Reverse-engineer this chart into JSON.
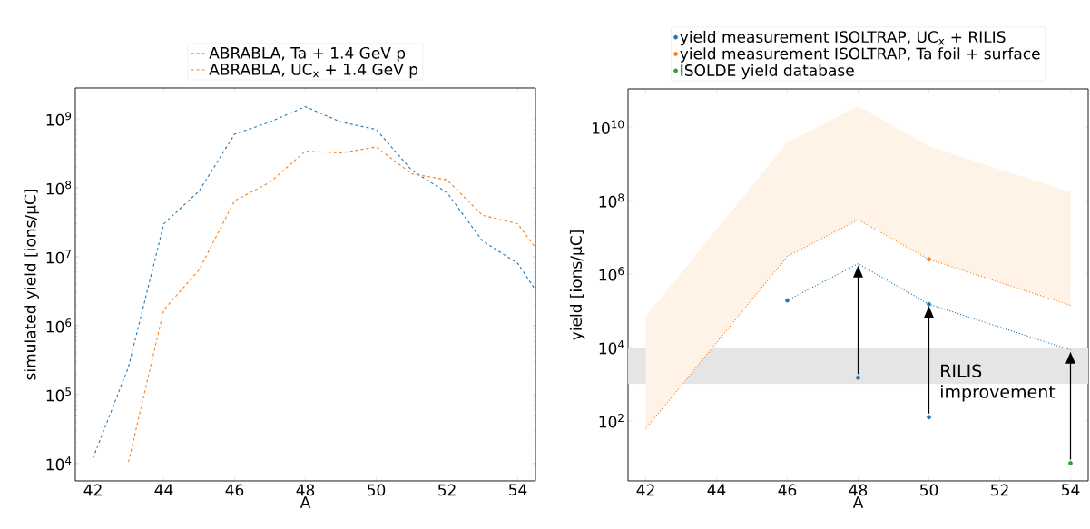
{
  "chart_data": [
    {
      "type": "line",
      "xlabel": "A",
      "ylabel": "simulated yield [ions/μC]",
      "log": "y",
      "legend": "top",
      "line_style": "dashed",
      "marker": "none",
      "xlim": [
        41.5,
        54.5
      ],
      "ylim": [
        5600,
        2800000000
      ],
      "xticks": [
        42,
        44,
        46,
        48,
        50,
        52,
        54
      ],
      "yticks": [
        {
          "value": 10000,
          "label": "10$^{4}$"
        },
        {
          "value": 100000,
          "label": "10$^{5}$"
        },
        {
          "value": 1000000,
          "label": "10$^{6}$"
        },
        {
          "value": 10000000,
          "label": "10$^{7}$"
        },
        {
          "value": 100000000,
          "label": "10$^{8}$"
        },
        {
          "value": 1000000000,
          "label": "10$^{9}$"
        }
      ],
      "series": [
        {
          "name": "ABRABLA, Ta + 1.4 GeV p",
          "color": "#1f77b4",
          "x": [
            42,
            43,
            44,
            45,
            46,
            47,
            48,
            49,
            50,
            51,
            52,
            53,
            54,
            54.5
          ],
          "values": [
            12000,
            250000,
            30000000,
            90000000,
            600000000,
            900000000,
            1500000000,
            900000000,
            700000000,
            180000000,
            85000000,
            17000000,
            8000000,
            3300000
          ]
        },
        {
          "name": "ABRABLA, UC$_{x}$ + 1.4 GeV p",
          "color": "#ff7f0e",
          "x": [
            43,
            44,
            45,
            46,
            47,
            48,
            49,
            50,
            51,
            52,
            53,
            54,
            54.5
          ],
          "values": [
            10500,
            1700000,
            6500000,
            65000000,
            120000000,
            340000000,
            320000000,
            390000000,
            160000000,
            130000000,
            40000000,
            30000000,
            13500000
          ]
        }
      ]
    },
    {
      "type": "line",
      "xlabel": "A",
      "ylabel": "yield [ions/μC]",
      "log": "y",
      "legend": "top",
      "xlim": [
        41.5,
        54.5
      ],
      "ylim": [
        2.3,
        110000000000
      ],
      "xticks": [
        42,
        44,
        46,
        48,
        50,
        52,
        54
      ],
      "yticks": [
        {
          "value": 100,
          "label": "10$^{2}$"
        },
        {
          "value": 10000,
          "label": "10$^{4}$"
        },
        {
          "value": 1000000,
          "label": "10$^{6}$"
        },
        {
          "value": 100000000,
          "label": "10$^{8}$"
        },
        {
          "value": 10000000000,
          "label": "10$^{10}$"
        }
      ],
      "bands": [
        {
          "axis": "y",
          "from": 1000,
          "to": 10000,
          "color": "#e5e5e5"
        }
      ],
      "annotations": [
        "RILIS improvement"
      ],
      "series": [
        {
          "type": "line",
          "color": "#1f77b4",
          "line_style": "dotted",
          "marker": "none",
          "x": [
            46,
            48,
            50,
            54
          ],
          "values": [
            190000,
            1900000,
            150000,
            8500
          ]
        },
        {
          "type": "line",
          "color": "#ff7f0e",
          "line_style": "dotted",
          "marker": "none",
          "x": [
            42,
            46,
            48,
            50,
            54
          ],
          "values": [
            60,
            3000000,
            30000000,
            2500000,
            140000
          ],
          "lower": [
            60,
            3000000,
            30000000,
            2500000,
            140000
          ],
          "upper": [
            70000,
            3800000000,
            38000000000,
            3000000000,
            170000000
          ]
        },
        {
          "type": "scatter",
          "name": "yield measurement ISOLTRAP, UC$_{x}$ + RILIS",
          "color": "#1f77b4",
          "marker": "circle",
          "x": [
            46,
            48,
            50,
            50
          ],
          "values": [
            190000,
            1500,
            150000,
            125
          ]
        },
        {
          "type": "scatter",
          "name": "yield measurement ISOLTRAP, Ta foil + surface",
          "color": "#ff7f0e",
          "marker": "circle",
          "x": [
            50
          ],
          "values": [
            2500000
          ]
        },
        {
          "type": "scatter",
          "name": "ISOLDE yield database",
          "color": "#2ca02c",
          "marker": "circle",
          "x": [
            54
          ],
          "values": [
            7
          ]
        }
      ]
    }
  ]
}
